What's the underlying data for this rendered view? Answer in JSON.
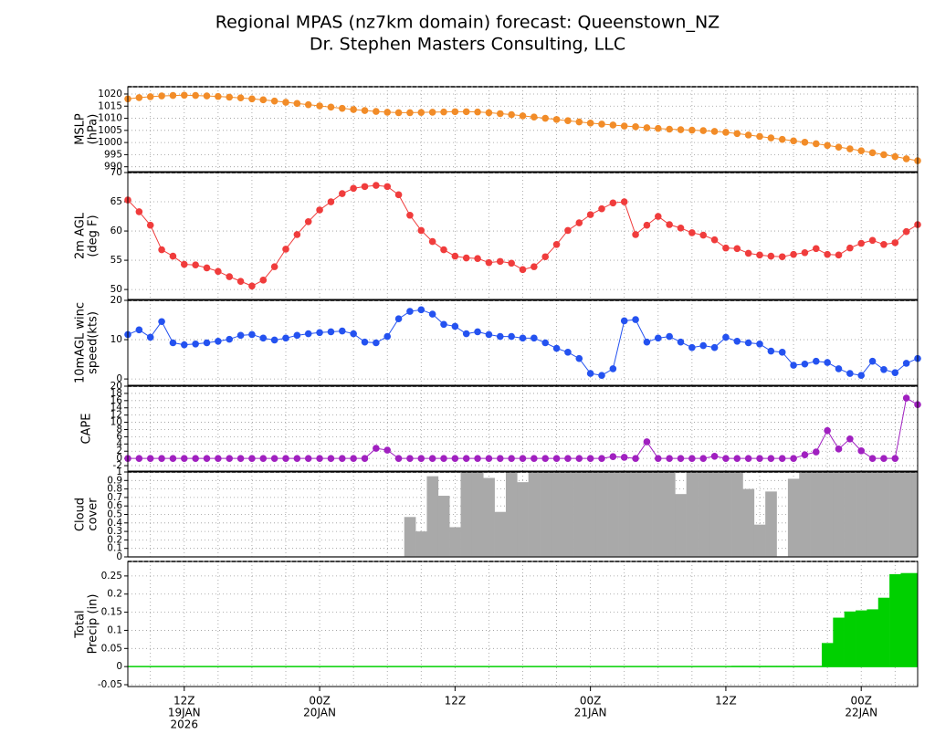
{
  "title": "Regional MPAS (nz7km domain) forecast: Queenstown_NZ",
  "subtitle": "Dr. Stephen Masters Consulting, LLC",
  "chart_data": [
    {
      "type": "line",
      "ylabel": [
        "MSLP",
        "(hPa)"
      ],
      "color": "#f28c28",
      "ylim": [
        988,
        1023
      ],
      "yticks": [
        990,
        995,
        1000,
        1005,
        1010,
        1015,
        1020
      ],
      "values": [
        1018.0,
        1018.5,
        1018.9,
        1019.2,
        1019.4,
        1019.5,
        1019.4,
        1019.2,
        1019.0,
        1018.7,
        1018.4,
        1018.0,
        1017.6,
        1017.1,
        1016.6,
        1016.1,
        1015.6,
        1015.1,
        1014.6,
        1014.1,
        1013.6,
        1013.2,
        1012.8,
        1012.5,
        1012.3,
        1012.3,
        1012.4,
        1012.5,
        1012.6,
        1012.7,
        1012.7,
        1012.6,
        1012.3,
        1011.9,
        1011.5,
        1011.0,
        1010.5,
        1010.0,
        1009.5,
        1009.0,
        1008.5,
        1008.0,
        1007.6,
        1007.2,
        1006.8,
        1006.5,
        1006.1,
        1005.8,
        1005.5,
        1005.3,
        1005.1,
        1004.9,
        1004.6,
        1004.2,
        1003.7,
        1003.1,
        1002.5,
        1001.9,
        1001.3,
        1000.7,
        1000.1,
        999.5,
        998.8,
        998.1,
        997.4,
        996.6,
        995.8,
        995.0,
        994.2,
        993.3,
        992.5
      ]
    },
    {
      "type": "line",
      "ylabel": [
        "2m AGL",
        "(deg F)"
      ],
      "color": "#f03c3c",
      "ylim": [
        48.3,
        70
      ],
      "yticks": [
        50,
        55,
        60,
        65,
        70
      ],
      "values": [
        65.3,
        63.3,
        61.0,
        56.8,
        55.7,
        54.3,
        54.2,
        53.7,
        53.1,
        52.2,
        51.4,
        50.6,
        51.6,
        53.9,
        56.9,
        59.4,
        61.6,
        63.6,
        65,
        66.4,
        67.3,
        67.6,
        67.8,
        67.6,
        66.2,
        62.7,
        60.1,
        58.2,
        56.8,
        55.7,
        55.4,
        55.3,
        54.6,
        54.8,
        54.5,
        53.4,
        53.9,
        55.6,
        57.7,
        60.1,
        61.4,
        62.8,
        63.8,
        64.8,
        65.0,
        59.4,
        61.0,
        62.5,
        61.1,
        60.5,
        59.7,
        59.3,
        58.5,
        57.1,
        57.0,
        56.2,
        55.9,
        55.7,
        55.6,
        56.0,
        56.3,
        57.0,
        56.0,
        55.9,
        57.1,
        57.9,
        58.4,
        57.7,
        58.0,
        59.9,
        61.1
      ]
    },
    {
      "type": "line",
      "ylabel": [
        "10mAGL winc",
        "speed(kts)"
      ],
      "color": "#2452f0",
      "ylim": [
        -1.6,
        20
      ],
      "yticks": [
        0,
        10,
        20
      ],
      "values": [
        11.3,
        12.5,
        10.6,
        14.6,
        9.2,
        8.7,
        8.9,
        9.2,
        9.6,
        10.1,
        11.1,
        11.3,
        10.4,
        9.9,
        10.4,
        11.1,
        11.5,
        11.8,
        12.0,
        12.2,
        11.5,
        9.4,
        9.2,
        10.8,
        15.3,
        17.2,
        17.6,
        16.5,
        13.9,
        13.4,
        11.5,
        12.0,
        11.3,
        10.8,
        10.8,
        10.4,
        10.4,
        9.2,
        7.8,
        6.8,
        5.2,
        1.4,
        0.9,
        2.6,
        14.8,
        15.1,
        9.4,
        10.4,
        10.8,
        9.4,
        8.0,
        8.5,
        8.0,
        10.6,
        9.6,
        9.2,
        8.9,
        7.1,
        6.8,
        3.5,
        3.8,
        4.5,
        4.2,
        2.6,
        1.4,
        0.9,
        4.5,
        2.4,
        1.6,
        4.0,
        5.2
      ]
    },
    {
      "type": "line",
      "ylabel": [
        "CAPE"
      ],
      "color": "#a020c0",
      "ylim": [
        -3.5,
        20
      ],
      "yticks": [
        -2,
        0,
        2,
        4,
        6,
        8,
        10,
        12,
        14,
        16,
        18,
        20
      ],
      "values": [
        0,
        0,
        0,
        0,
        0,
        0,
        0,
        0,
        0,
        0,
        0,
        0,
        0,
        0,
        0,
        0,
        0,
        0,
        0,
        0,
        0,
        0,
        2.8,
        2.3,
        0,
        0,
        0,
        0,
        0,
        0,
        0,
        0,
        0,
        0,
        0,
        0,
        0,
        0,
        0,
        0,
        0,
        0,
        0,
        0.5,
        0.3,
        0,
        4.6,
        0,
        0,
        0,
        0,
        0,
        0.6,
        0,
        0,
        0,
        0,
        0,
        0,
        0,
        1.0,
        1.8,
        7.7,
        2.6,
        5.4,
        2.1,
        0,
        0,
        0,
        16.7,
        14.9
      ]
    },
    {
      "type": "bar",
      "ylabel": [
        "Cloud",
        "cover"
      ],
      "color": "#a9a9a9",
      "ylim": [
        0,
        1
      ],
      "yticks": [
        0,
        0.1,
        0.2,
        0.3,
        0.4,
        0.5,
        0.6,
        0.7,
        0.8,
        0.9,
        1
      ],
      "values": [
        0,
        0,
        0,
        0,
        0,
        0,
        0,
        0,
        0,
        0,
        0,
        0,
        0,
        0,
        0,
        0,
        0,
        0,
        0,
        0,
        0,
        0,
        0,
        0,
        0,
        0.47,
        0.3,
        0.95,
        0.72,
        0.35,
        1,
        1,
        0.93,
        0.53,
        1,
        0.88,
        1,
        1,
        1,
        1,
        1,
        1,
        1,
        1,
        1,
        1,
        1,
        1,
        1,
        0.74,
        1,
        1,
        1,
        1,
        1,
        0.8,
        0.38,
        0.77,
        0,
        0.92,
        1,
        1,
        1,
        1,
        1,
        1,
        1,
        1,
        1,
        1,
        1
      ]
    },
    {
      "type": "bar",
      "ylabel": [
        "Total",
        "Precip (in)"
      ],
      "color": "#00d000",
      "ylim": [
        -0.055,
        0.29
      ],
      "yticks": [
        -0.05,
        0,
        0.05,
        0.1,
        0.15,
        0.2,
        0.25
      ],
      "categories": [
        null,
        null,
        null,
        null,
        null,
        [
          "12Z",
          "19JAN",
          "2026"
        ],
        null,
        null,
        null,
        null,
        null,
        null,
        null,
        null,
        null,
        null,
        null,
        [
          "00Z",
          "20JAN"
        ],
        null,
        null,
        null,
        null,
        null,
        null,
        null,
        null,
        null,
        null,
        null,
        [
          "12Z"
        ],
        null,
        null,
        null,
        null,
        null,
        null,
        null,
        null,
        null,
        null,
        null,
        [
          "00Z",
          "21JAN"
        ],
        null,
        null,
        null,
        null,
        null,
        null,
        null,
        null,
        null,
        null,
        null,
        [
          "12Z"
        ],
        null,
        null,
        null,
        null,
        null,
        null,
        null,
        null,
        null,
        null,
        null,
        [
          "00Z",
          "22JAN"
        ],
        null,
        null,
        null,
        null,
        null
      ],
      "values": [
        0,
        0,
        0,
        0,
        0,
        0,
        0,
        0,
        0,
        0,
        0,
        0,
        0,
        0,
        0,
        0,
        0,
        0,
        0,
        0,
        0,
        0,
        0,
        0,
        0,
        0,
        0,
        0,
        0,
        0,
        0,
        0,
        0,
        0,
        0,
        0,
        0,
        0,
        0,
        0,
        0,
        0,
        0,
        0,
        0,
        0,
        0,
        0,
        0,
        0,
        0,
        0,
        0,
        0,
        0.002,
        0.002,
        0.002,
        0.002,
        0.002,
        0.002,
        0.002,
        0.002,
        0.065,
        0.135,
        0.152,
        0.155,
        0.158,
        0.19,
        0.255,
        0.258,
        0.258
      ]
    }
  ]
}
